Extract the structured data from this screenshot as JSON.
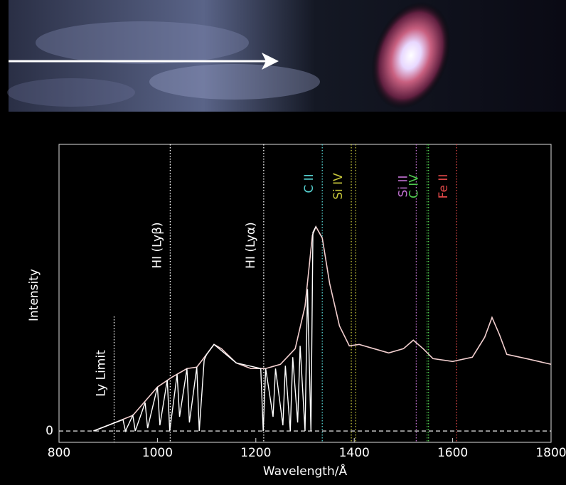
{
  "chart_data": {
    "type": "line",
    "xlabel": "Wavelength/Å",
    "ylabel": "Intensity",
    "xlim": [
      800,
      1800
    ],
    "xticks": [
      800,
      1000,
      1200,
      1400,
      1600,
      1800
    ],
    "ylim": [
      -0.04,
      1.01
    ],
    "yticks": [
      0
    ],
    "series": [
      {
        "color": "#f2cfcf",
        "x": [
          870,
          900,
          950,
          1000,
          1030,
          1060,
          1080,
          1100,
          1115,
          1130,
          1160,
          1190,
          1220,
          1250,
          1280,
          1300,
          1315,
          1322,
          1335,
          1350,
          1370,
          1390,
          1410,
          1440,
          1470,
          1500,
          1520,
          1540,
          1560,
          1600,
          1640,
          1665,
          1680,
          1695,
          1710,
          1750,
          1800
        ],
        "values": [
          0,
          0.02,
          0.055,
          0.155,
          0.19,
          0.22,
          0.225,
          0.27,
          0.305,
          0.29,
          0.24,
          0.22,
          0.22,
          0.235,
          0.29,
          0.44,
          0.69,
          0.72,
          0.68,
          0.52,
          0.37,
          0.3,
          0.305,
          0.29,
          0.275,
          0.29,
          0.32,
          0.29,
          0.255,
          0.245,
          0.26,
          0.33,
          0.4,
          0.34,
          0.27,
          0.255,
          0.235
        ]
      },
      {
        "color": "#ffffff",
        "x": [
          870,
          900,
          930,
          935,
          950,
          955,
          975,
          980,
          1000,
          1005,
          1020,
          1025,
          1040,
          1045,
          1060,
          1065,
          1080,
          1085,
          1095,
          1100,
          1115,
          1160,
          1210,
          1215,
          1220,
          1235,
          1240,
          1255,
          1260,
          1270,
          1275,
          1285,
          1290,
          1300,
          1305,
          1312,
          1316,
          1322
        ],
        "values": [
          0,
          0.02,
          0.04,
          0,
          0.055,
          0,
          0.1,
          0.01,
          0.155,
          0.02,
          0.18,
          0,
          0.2,
          0.05,
          0.22,
          0.03,
          0.225,
          0,
          0.25,
          0.27,
          0.305,
          0.24,
          0.22,
          0,
          0.22,
          0.05,
          0.22,
          0.02,
          0.23,
          0,
          0.26,
          0.03,
          0.3,
          0,
          0.5,
          0,
          0.7,
          0.72
        ]
      }
    ],
    "annotations": [
      {
        "text": "Ly Limit",
        "x": [
          912
        ],
        "color": "#ffffff"
      },
      {
        "text": "HI (Lyβ)",
        "x": [
          1026
        ],
        "color": "#ffffff"
      },
      {
        "text": "HI (Lyα)",
        "x": [
          1216
        ],
        "color": "#ffffff"
      },
      {
        "text": "C II",
        "x": [
          1335
        ],
        "color": "#55d0d0"
      },
      {
        "text": "Si IV",
        "x": [
          1394,
          1403
        ],
        "color": "#c8c83c"
      },
      {
        "text": "Si II",
        "x": [
          1526
        ],
        "color": "#c070d0"
      },
      {
        "text": "C IV",
        "x": [
          1548,
          1551
        ],
        "color": "#50c850"
      },
      {
        "text": "Fe II",
        "x": [
          1608
        ],
        "color": "#e04848"
      }
    ]
  }
}
